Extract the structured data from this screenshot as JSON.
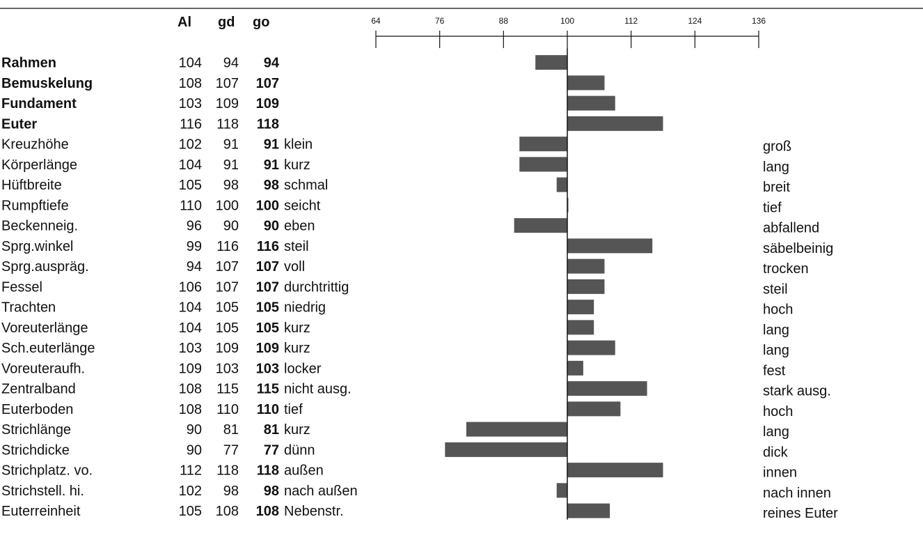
{
  "chart_data": {
    "type": "bar",
    "headers": {
      "a": "Al",
      "b": "gd",
      "c": "go"
    },
    "xlim": [
      64,
      136
    ],
    "x_ticks": [
      "64",
      "76",
      "88",
      "100",
      "112",
      "124",
      "136"
    ],
    "baseline": 100,
    "bar_color": "#555555",
    "rows": [
      {
        "label": "Rahmen",
        "al": "104",
        "gd": "94",
        "go": "94",
        "go_value": 94,
        "left": "",
        "right": "",
        "bold_label": true
      },
      {
        "label": "Bemuskelung",
        "al": "108",
        "gd": "107",
        "go": "107",
        "go_value": 107,
        "left": "",
        "right": "",
        "bold_label": true
      },
      {
        "label": "Fundament",
        "al": "103",
        "gd": "109",
        "go": "109",
        "go_value": 109,
        "left": "",
        "right": "",
        "bold_label": true
      },
      {
        "label": "Euter",
        "al": "116",
        "gd": "118",
        "go": "118",
        "go_value": 118,
        "left": "",
        "right": "",
        "bold_label": true
      },
      {
        "label": "Kreuzhöhe",
        "al": "102",
        "gd": "91",
        "go": "91",
        "go_value": 91,
        "left": "klein",
        "right": "groß"
      },
      {
        "label": "Körperlänge",
        "al": "104",
        "gd": "91",
        "go": "91",
        "go_value": 91,
        "left": "kurz",
        "right": "lang"
      },
      {
        "label": "Hüftbreite",
        "al": "105",
        "gd": "98",
        "go": "98",
        "go_value": 98,
        "left": "schmal",
        "right": "breit"
      },
      {
        "label": "Rumpftiefe",
        "al": "110",
        "gd": "100",
        "go": "100",
        "go_value": 100,
        "left": "seicht",
        "right": "tief"
      },
      {
        "label": "Beckenneig.",
        "al": "96",
        "gd": "90",
        "go": "90",
        "go_value": 90,
        "left": "eben",
        "right": "abfallend"
      },
      {
        "label": "Sprg.winkel",
        "al": "99",
        "gd": "116",
        "go": "116",
        "go_value": 116,
        "left": "steil",
        "right": "säbelbeinig"
      },
      {
        "label": "Sprg.auspräg.",
        "al": "94",
        "gd": "107",
        "go": "107",
        "go_value": 107,
        "left": "voll",
        "right": "trocken"
      },
      {
        "label": "Fessel",
        "al": "106",
        "gd": "107",
        "go": "107",
        "go_value": 107,
        "left": "durchtrittig",
        "right": "steil"
      },
      {
        "label": "Trachten",
        "al": "104",
        "gd": "105",
        "go": "105",
        "go_value": 105,
        "left": "niedrig",
        "right": "hoch"
      },
      {
        "label": "Voreuterlänge",
        "al": "104",
        "gd": "105",
        "go": "105",
        "go_value": 105,
        "left": "kurz",
        "right": "lang"
      },
      {
        "label": "Sch.euterlänge",
        "al": "103",
        "gd": "109",
        "go": "109",
        "go_value": 109,
        "left": "kurz",
        "right": "lang"
      },
      {
        "label": "Voreuteraufh.",
        "al": "109",
        "gd": "103",
        "go": "103",
        "go_value": 103,
        "left": "locker",
        "right": "fest"
      },
      {
        "label": "Zentralband",
        "al": "108",
        "gd": "115",
        "go": "115",
        "go_value": 115,
        "left": "nicht ausg.",
        "right": "stark ausg."
      },
      {
        "label": "Euterboden",
        "al": "108",
        "gd": "110",
        "go": "110",
        "go_value": 110,
        "left": "tief",
        "right": "hoch"
      },
      {
        "label": "Strichlänge",
        "al": "90",
        "gd": "81",
        "go": "81",
        "go_value": 81,
        "left": "kurz",
        "right": "lang"
      },
      {
        "label": "Strichdicke",
        "al": "90",
        "gd": "77",
        "go": "77",
        "go_value": 77,
        "left": "dünn",
        "right": "dick"
      },
      {
        "label": "Strichplatz. vo.",
        "al": "112",
        "gd": "118",
        "go": "118",
        "go_value": 118,
        "left": "außen",
        "right": "innen"
      },
      {
        "label": "Strichstell. hi.",
        "al": "102",
        "gd": "98",
        "go": "98",
        "go_value": 98,
        "left": "nach außen",
        "right": "nach innen"
      },
      {
        "label": "Euterreinheit",
        "al": "105",
        "gd": "108",
        "go": "108",
        "go_value": 108,
        "left": "Nebenstr.",
        "right": "reines Euter"
      }
    ]
  }
}
